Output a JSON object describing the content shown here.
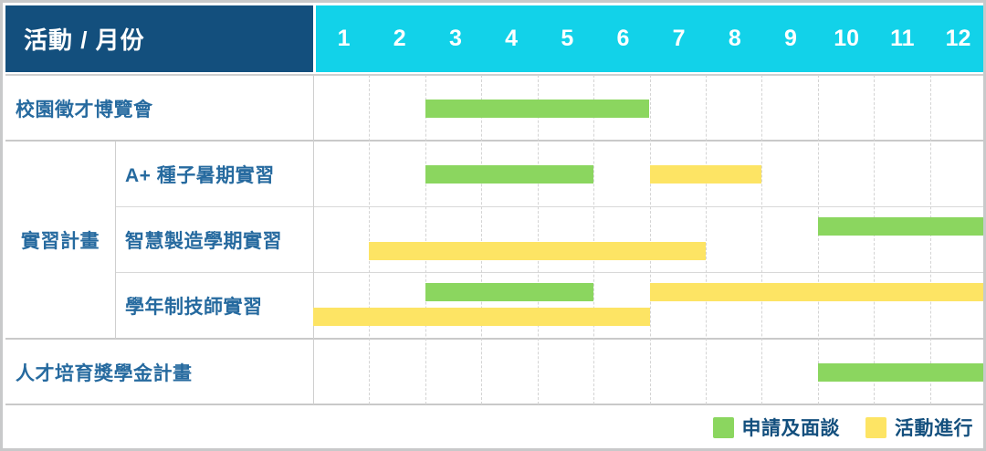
{
  "header": {
    "corner_label": "活動 / 月份",
    "months": [
      "1",
      "2",
      "3",
      "4",
      "5",
      "6",
      "7",
      "8",
      "9",
      "10",
      "11",
      "12"
    ]
  },
  "legend": {
    "items": [
      {
        "name": "申請及面談",
        "color": "#8bd65f"
      },
      {
        "name": "活動進行",
        "color": "#fde464"
      }
    ]
  },
  "colors": {
    "header_bg": "#134f7d",
    "months_bg": "#12d2e9",
    "header_text": "#ffffff",
    "row_label_text": "#266a9f",
    "legend_text": "#134f7d",
    "bar_green": "#8bd65f",
    "bar_yellow": "#fde464"
  },
  "chart_data": {
    "type": "gantt",
    "x_axis": {
      "label": "月份",
      "ticks": [
        1,
        2,
        3,
        4,
        5,
        6,
        7,
        8,
        9,
        10,
        11,
        12
      ],
      "range": [
        1,
        12
      ]
    },
    "legend": [
      {
        "name": "申請及面談",
        "color": "#8bd65f"
      },
      {
        "name": "活動進行",
        "color": "#fde464"
      }
    ],
    "tasks": [
      {
        "group": "",
        "name": "校園徵才博覽會",
        "bars": [
          {
            "series": "申請及面談",
            "start_month": 3,
            "end_month": 6,
            "lane": "center"
          }
        ]
      },
      {
        "group": "實習計畫",
        "name": "A+ 種子暑期實習",
        "bars": [
          {
            "series": "申請及面談",
            "start_month": 3,
            "end_month": 5,
            "lane": "center"
          },
          {
            "series": "活動進行",
            "start_month": 7,
            "end_month": 8,
            "lane": "center"
          }
        ]
      },
      {
        "group": "實習計畫",
        "name": "智慧製造學期實習",
        "bars": [
          {
            "series": "申請及面談",
            "start_month": 10,
            "end_month": 12,
            "lane": "top"
          },
          {
            "series": "活動進行",
            "start_month": 2,
            "end_month": 7,
            "lane": "bottom"
          }
        ]
      },
      {
        "group": "實習計畫",
        "name": "學年制技師實習",
        "bars": [
          {
            "series": "申請及面談",
            "start_month": 3,
            "end_month": 5,
            "lane": "top"
          },
          {
            "series": "活動進行",
            "start_month": 7,
            "end_month": 12,
            "lane": "top"
          },
          {
            "series": "活動進行",
            "start_month": 1,
            "end_month": 6,
            "lane": "bottom"
          }
        ]
      },
      {
        "group": "",
        "name": "人才培育獎學金計畫",
        "bars": [
          {
            "series": "申請及面談",
            "start_month": 10,
            "end_month": 12,
            "lane": "center"
          }
        ]
      }
    ]
  }
}
